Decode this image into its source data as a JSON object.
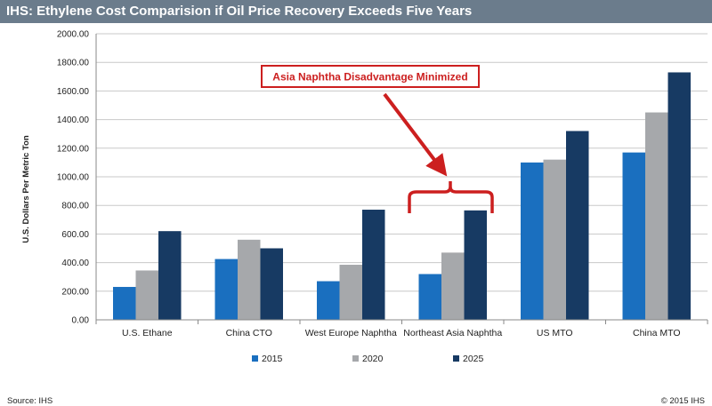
{
  "header": {
    "title": "IHS: Ethylene Cost Comparision if Oil Price Recovery Exceeds Five Years"
  },
  "footer": {
    "source": "Source: IHS",
    "copyright": "© 2015 IHS"
  },
  "annotation": {
    "text": "Asia Naphtha Disadvantage Minimized",
    "color": "#cc1f1f"
  },
  "colors": {
    "s2015": "#1a6fbf",
    "s2020": "#a6a8ab",
    "s2025": "#173a63",
    "grid": "#c8c8c8",
    "axis": "#8a8a8a"
  },
  "chart_data": {
    "type": "bar",
    "title": "IHS: Ethylene Cost Comparision if Oil Price Recovery Exceeds Five Years",
    "ylabel": "U.S. Dollars Per Metric Ton",
    "xlabel": "",
    "ylim": [
      0,
      2000
    ],
    "yticks": [
      "0.00",
      "200.00",
      "400.00",
      "600.00",
      "800.00",
      "1000.00",
      "1200.00",
      "1400.00",
      "1600.00",
      "1800.00",
      "2000.00"
    ],
    "categories": [
      "U.S. Ethane",
      "China CTO",
      "West Europe Naphtha",
      "Northeast Asia Naphtha",
      "US MTO",
      "China MTO"
    ],
    "series": [
      {
        "name": "2015",
        "values": [
          230,
          425,
          270,
          320,
          1100,
          1170
        ]
      },
      {
        "name": "2020",
        "values": [
          345,
          560,
          385,
          470,
          1120,
          1450
        ]
      },
      {
        "name": "2025",
        "values": [
          620,
          500,
          770,
          765,
          1320,
          1730
        ]
      }
    ],
    "legend_position": "bottom",
    "grid": true
  }
}
